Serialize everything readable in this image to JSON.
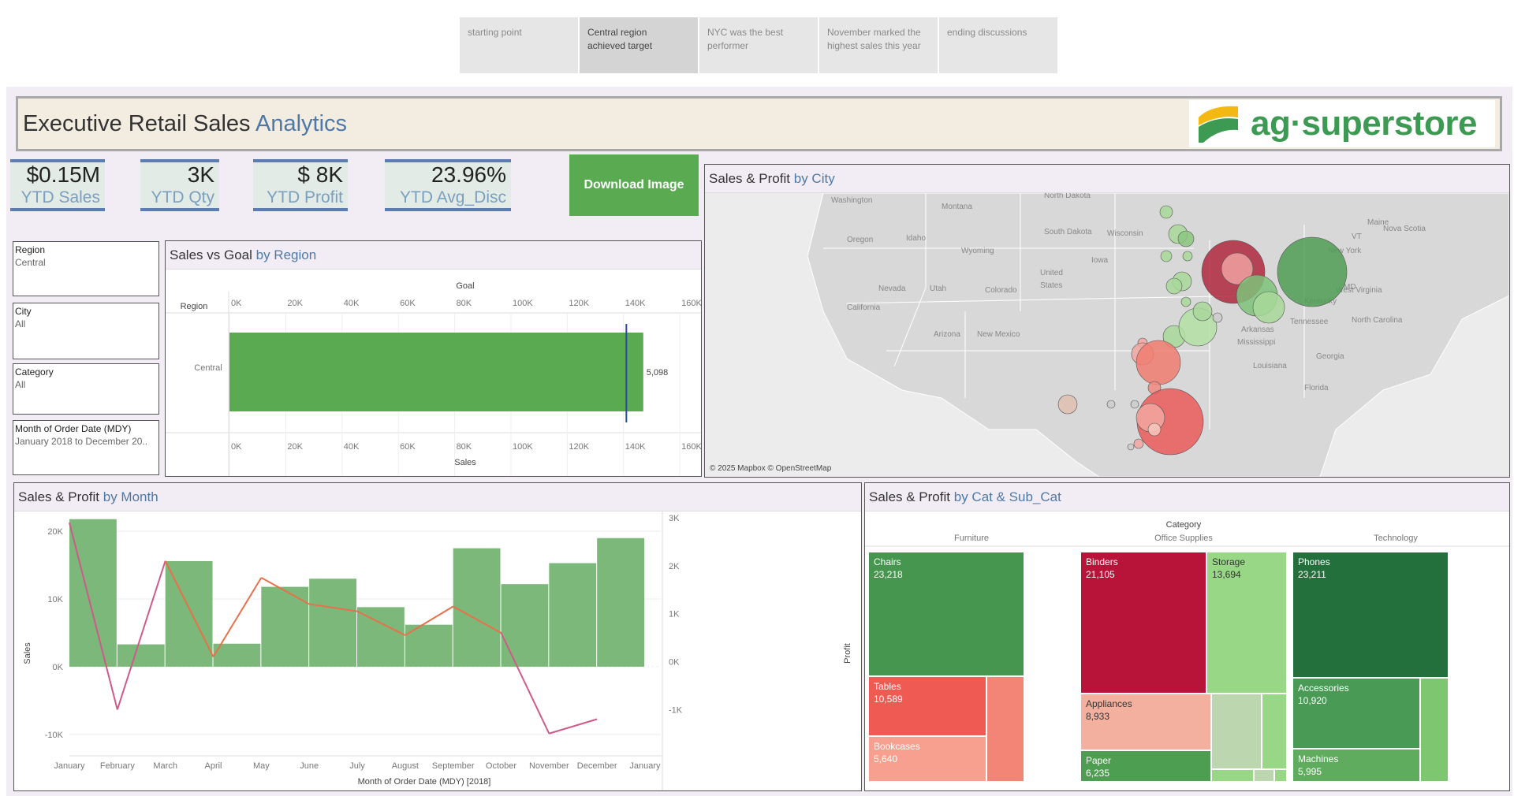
{
  "story": {
    "tabs": [
      {
        "label_line1": "starting point",
        "label_line2": ""
      },
      {
        "label_line1": "Central region",
        "label_line2": "achieved target"
      },
      {
        "label_line1": "NYC was the best",
        "label_line2": "performer"
      },
      {
        "label_line1": "November marked the",
        "label_line2": "highest sales this year"
      },
      {
        "label_line1": "ending discussions",
        "label_line2": ""
      }
    ],
    "active_index": 1
  },
  "header": {
    "title_main": "Executive Retail Sales",
    "title_accent": "Analytics",
    "logo_text": "ag·superstore"
  },
  "kpis": [
    {
      "value": "$0.15M",
      "label": "YTD Sales"
    },
    {
      "value": "3K",
      "label": "YTD Qty"
    },
    {
      "value": "$ 8K",
      "label": "YTD Profit"
    },
    {
      "value": "23.96%",
      "label": "YTD Avg_Disc"
    }
  ],
  "download_label": "Download Image",
  "filters": [
    {
      "label": "Region",
      "value": "Central"
    },
    {
      "label": "City",
      "value": "All"
    },
    {
      "label": "Category",
      "value": "All"
    },
    {
      "label": "Month of Order Date (MDY)",
      "value": "January 2018 to December 20.."
    }
  ],
  "panels": {
    "sales_goal": {
      "title": "Sales vs Goal",
      "accent": "by Region"
    },
    "city_map": {
      "title": "Sales & Profit",
      "accent": "by City",
      "attribution": "© 2025 Mapbox © OpenStreetMap"
    },
    "month": {
      "title": "Sales & Profit",
      "accent": "by Month"
    },
    "cat": {
      "title": "Sales & Profit",
      "accent": "by Cat & Sub_Cat"
    }
  },
  "chart_data": [
    {
      "type": "bar",
      "name": "sales_vs_goal",
      "top_axis_title": "Goal",
      "bottom_axis_title": "Sales",
      "row_header": "Region",
      "categories": [
        "Central"
      ],
      "values": [
        147000
      ],
      "value_label": "5,098",
      "goal": 141000,
      "xlim": [
        0,
        165000
      ],
      "ticks": [
        "0K",
        "20K",
        "40K",
        "60K",
        "80K",
        "100K",
        "120K",
        "140K",
        "160K"
      ],
      "colors": {
        "bar": "#5aaa52",
        "goal_line": "#2c4b9a"
      }
    },
    {
      "type": "bar",
      "name": "sales_profit_by_month",
      "xlabel": "Month of Order Date (MDY) [2018]",
      "ylabel": "Sales",
      "y2label": "Profit",
      "categories": [
        "January",
        "February",
        "March",
        "April",
        "May",
        "June",
        "July",
        "August",
        "September",
        "October",
        "November",
        "December",
        "January"
      ],
      "sales": [
        21800,
        3300,
        15600,
        3400,
        11800,
        13000,
        8800,
        6200,
        17500,
        12200,
        15300,
        19000
      ],
      "profit": [
        2900,
        -1000,
        2100,
        100,
        1750,
        1200,
        1050,
        550,
        1150,
        600,
        -1500,
        -1200
      ],
      "ylim": [
        -12000,
        22000
      ],
      "y2lim": [
        -1800,
        3000
      ],
      "y_ticks": [
        "20K",
        "10K",
        "0K",
        "-10K"
      ],
      "y2_ticks": [
        "3K",
        "2K",
        "1K",
        "0K",
        "-1K"
      ],
      "colors": {
        "bar": "#7cb87a",
        "line_pos": "#e8704a",
        "line_neg": "#cf5a8a"
      }
    },
    {
      "type": "table",
      "name": "treemap_cat_subcat",
      "header": "Category",
      "categories": [
        "Furniture",
        "Office Supplies",
        "Technology"
      ],
      "cells": [
        {
          "cat": "Furniture",
          "label": "Chairs",
          "value": "23,218",
          "color": "#46964f"
        },
        {
          "cat": "Furniture",
          "label": "Tables",
          "value": "10,589",
          "color": "#ef5b52"
        },
        {
          "cat": "Furniture",
          "label": "Bookcases",
          "value": "5,640",
          "color": "#f7a090"
        },
        {
          "cat": "Furniture",
          "label": "",
          "value": "",
          "color": "#f28576"
        },
        {
          "cat": "Office Supplies",
          "label": "Binders",
          "value": "21,105",
          "color": "#b81439"
        },
        {
          "cat": "Office Supplies",
          "label": "Storage",
          "value": "13,694",
          "color": "#98d785"
        },
        {
          "cat": "Office Supplies",
          "label": "Appliances",
          "value": "8,933",
          "color": "#f4b09e"
        },
        {
          "cat": "Office Supplies",
          "label": "Paper",
          "value": "6,235",
          "color": "#4e9e52"
        },
        {
          "cat": "Technology",
          "label": "Phones",
          "value": "23,211",
          "color": "#23703d"
        },
        {
          "cat": "Technology",
          "label": "Accessories",
          "value": "10,920",
          "color": "#489a55"
        },
        {
          "cat": "Technology",
          "label": "Machines",
          "value": "5,995",
          "color": "#5fac5e"
        }
      ]
    }
  ],
  "map_labels": [
    "Washington",
    "Montana",
    "North Dakota",
    "South Dakota",
    "Oregon",
    "Idaho",
    "Wyoming",
    "Nevada",
    "Utah",
    "Colorado",
    "California",
    "Arizona",
    "New Mexico",
    "United",
    "States",
    "Iowa",
    "Wisconsin",
    "Maine",
    "Nova Scotia",
    "New York",
    "VT",
    "MD",
    "West Virginia",
    "Kentucky",
    "Tennessee",
    "North Carolina",
    "Arkansas",
    "Mississippi",
    "Georgia",
    "Florida",
    "Louisiana"
  ]
}
